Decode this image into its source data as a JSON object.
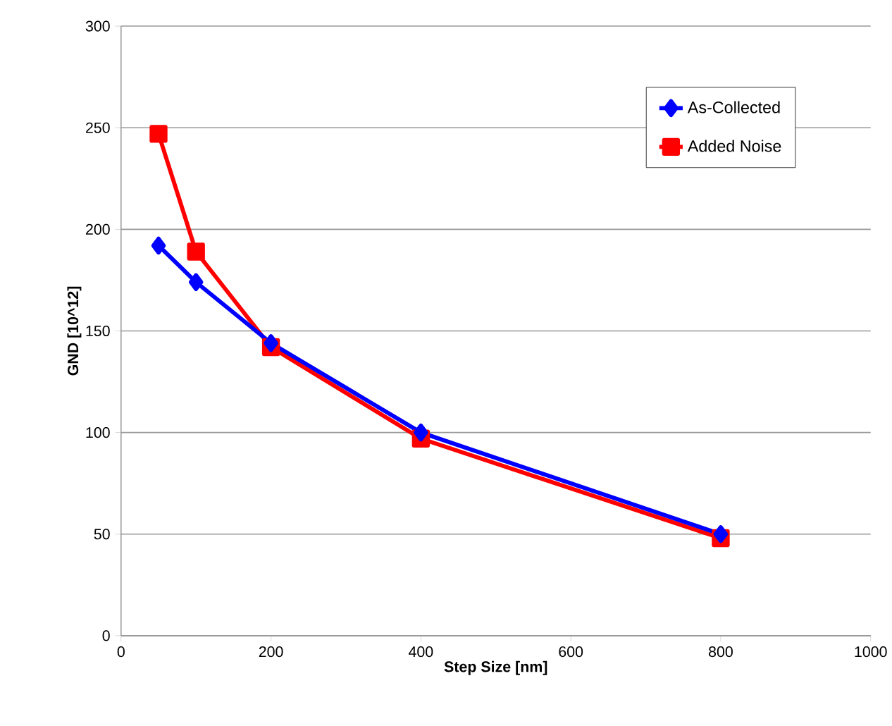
{
  "chart_data": {
    "type": "line",
    "xlabel": "Step Size [nm]",
    "ylabel": "GND [10^12]",
    "x": [
      50,
      100,
      200,
      400,
      800
    ],
    "series": [
      {
        "name": "As-Collected",
        "color": "#0000ff",
        "marker": "diamond",
        "values": [
          192,
          174,
          144,
          100,
          50
        ]
      },
      {
        "name": "Added Noise",
        "color": "#ff0000",
        "marker": "square",
        "values": [
          247,
          189,
          142,
          97,
          48
        ]
      }
    ],
    "xlim": [
      0,
      1000
    ],
    "xticks": [
      0,
      200,
      400,
      600,
      800,
      1000
    ],
    "ylim": [
      0,
      300
    ],
    "yticks": [
      0,
      50,
      100,
      150,
      200,
      250,
      300
    ],
    "grid": "y",
    "legend": "top right",
    "line_style": "solid"
  }
}
